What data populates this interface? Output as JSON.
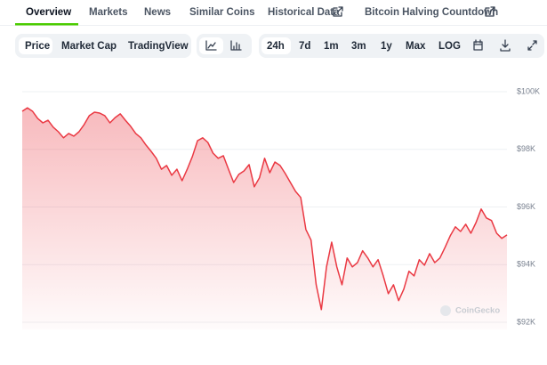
{
  "tabs": [
    "Overview",
    "Markets",
    "News",
    "Similar Coins",
    "Historical Data",
    "Bitcoin Halving Countdown"
  ],
  "view_buttons": [
    "Price",
    "Market Cap",
    "TradingView"
  ],
  "range_buttons": [
    "24h",
    "7d",
    "1m",
    "3m",
    "1y",
    "Max",
    "LOG"
  ],
  "watermark": "CoinGecko",
  "chart_data": {
    "type": "area",
    "color": "#ea3943",
    "grid": true,
    "ylim": [
      92000,
      100000
    ],
    "yticks": [
      {
        "value": 92000,
        "label": "$92K"
      },
      {
        "value": 94000,
        "label": "$94K"
      },
      {
        "value": 96000,
        "label": "$96K"
      },
      {
        "value": 98000,
        "label": "$98K"
      },
      {
        "value": 100000,
        "label": "$100K"
      }
    ],
    "values": [
      99320,
      99440,
      99320,
      99070,
      98920,
      99010,
      98770,
      98610,
      98400,
      98550,
      98460,
      98610,
      98860,
      99170,
      99290,
      99260,
      99170,
      98920,
      99100,
      99230,
      99010,
      98800,
      98550,
      98400,
      98150,
      97930,
      97690,
      97310,
      97440,
      97100,
      97310,
      96910,
      97310,
      97750,
      98300,
      98400,
      98240,
      97870,
      97690,
      97780,
      97310,
      96850,
      97130,
      97250,
      97470,
      96700,
      97010,
      97690,
      97190,
      97560,
      97440,
      97160,
      96850,
      96540,
      96330,
      95220,
      94850,
      93300,
      92440,
      93920,
      94780,
      93920,
      93300,
      94230,
      93920,
      94070,
      94480,
      94230,
      93920,
      94170,
      93610,
      92990,
      93300,
      92750,
      93150,
      93770,
      93610,
      94170,
      93980,
      94380,
      94070,
      94230,
      94600,
      95000,
      95310,
      95150,
      95400,
      95090,
      95460,
      95930,
      95620,
      95530,
      95090,
      94910,
      95030
    ]
  }
}
